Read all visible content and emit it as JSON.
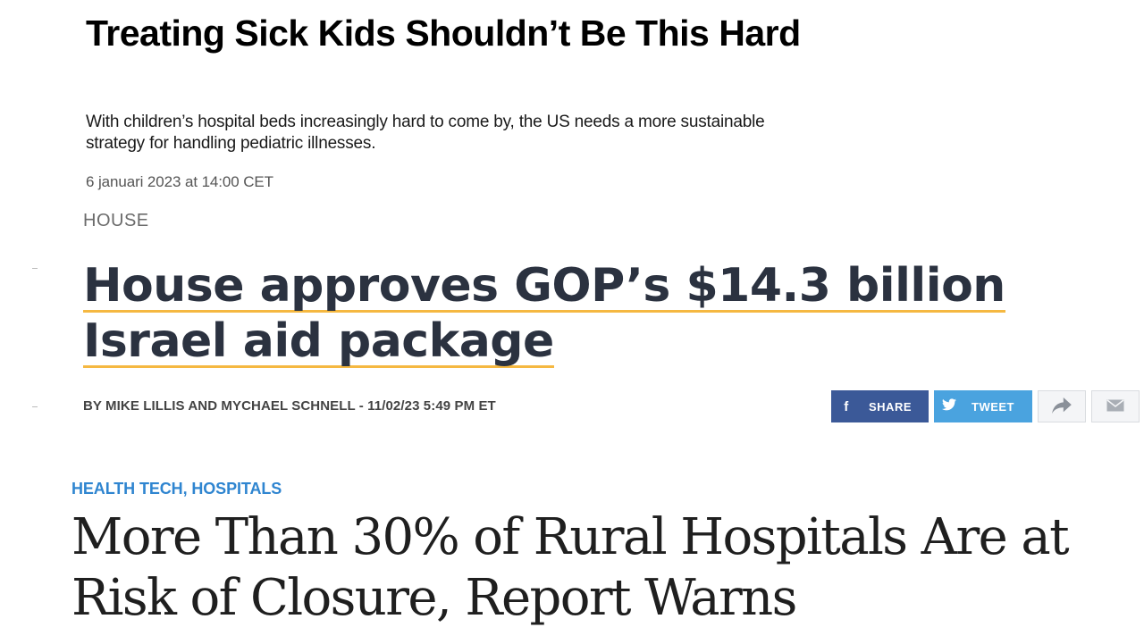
{
  "article1": {
    "title": "Treating Sick Kids Shouldn’t Be This Hard",
    "dek": "With children’s hospital beds increasingly hard to come by, the US needs a more sustainable strategy for handling pediatric illnesses.",
    "date": "6 januari 2023 at 14:00 CET"
  },
  "article2": {
    "kicker": "HOUSE",
    "title_line1": "House approves GOP’s $14.3 billion",
    "title_line2": "Israel aid package",
    "byline": "BY MIKE LILLIS AND MYCHAEL SCHNELL - 11/02/23 5:49 PM ET",
    "highlight_color": "#f5b841",
    "share": {
      "facebook_label": "SHARE",
      "twitter_label": "TWEET",
      "facebook_icon": "f",
      "facebook_color": "#3b5998",
      "twitter_color": "#4aa3df"
    }
  },
  "article3": {
    "category1": "HEALTH TECH",
    "separator": ",",
    "category2": "HOSPITALS",
    "title": "More Than 30% of Rural Hospitals Are at Risk of Closure, Report Warns",
    "category_color": "#2f85d0"
  }
}
